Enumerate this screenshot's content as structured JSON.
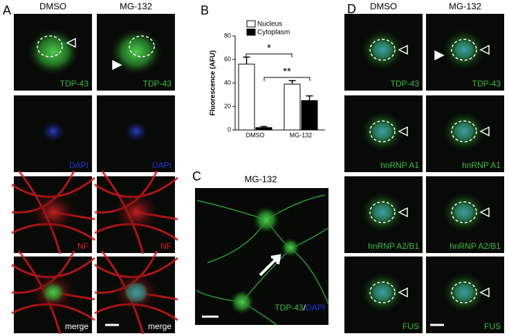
{
  "panel_a": {
    "label": "A",
    "columns": [
      "DMSO",
      "MG-132"
    ],
    "rows": [
      "TDP-43",
      "DAPI",
      "NF",
      "merge"
    ]
  },
  "chart_data": {
    "type": "bar",
    "panel_label": "B",
    "y_label": "Fluorescence (AFU)",
    "categories": [
      "DMSO",
      "MG-132"
    ],
    "series": [
      {
        "name": "Nucleus",
        "color": "#ffffff",
        "values": [
          56,
          39
        ],
        "errors": [
          6,
          3
        ]
      },
      {
        "name": "Cytoplasm",
        "color": "#000000",
        "values": [
          2,
          25
        ],
        "errors": [
          1,
          4
        ]
      }
    ],
    "ylim": [
      0,
      80
    ],
    "yticks": [
      0,
      20,
      40,
      60,
      80
    ],
    "annotations": [
      "*",
      "**"
    ]
  },
  "panel_c": {
    "label": "C",
    "title": "MG-132",
    "stain": [
      "TDP-43",
      "/",
      "DAPI"
    ]
  },
  "panel_d": {
    "label": "D",
    "columns": [
      "DMSO",
      "MG-132"
    ],
    "rows": [
      "TDP-43",
      "hnRNP A1",
      "hnRNP A2/B1",
      "FUS"
    ]
  }
}
